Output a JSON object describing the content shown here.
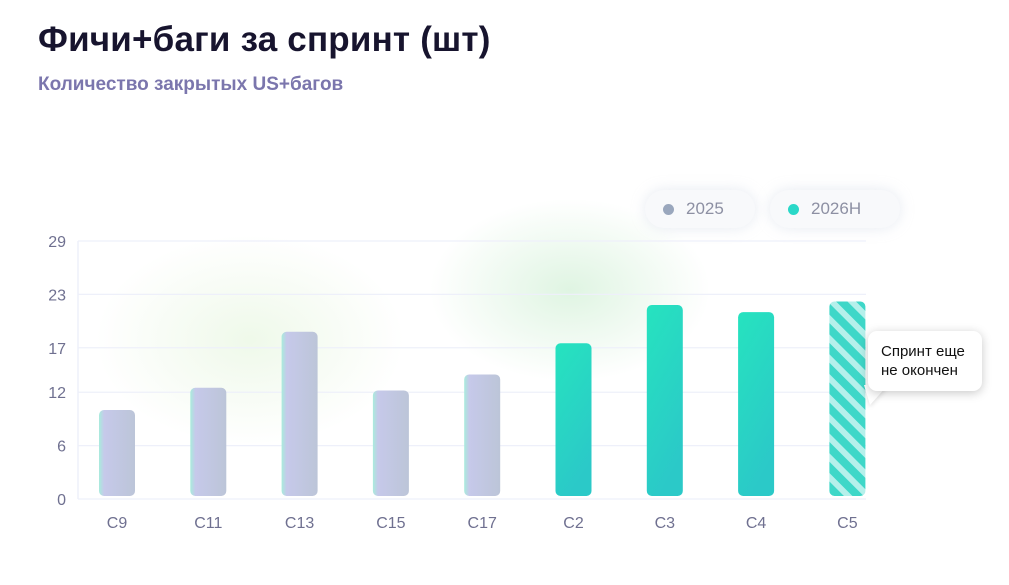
{
  "title": "Фичи+баги за спринт (шт)",
  "subtitle": "Количество закрытых US+багов",
  "legend": [
    {
      "label": "2025",
      "color": "#9aa7bd"
    },
    {
      "label": "2026H",
      "color": "#2ad8c8"
    }
  ],
  "callout": {
    "line1": "Спринт еще",
    "line2": "не окончен"
  },
  "colors": {
    "gray_bar": "#c0c6df",
    "gray_bar_edge": "#a8ecdc",
    "teal_bar_top": "#26e3bf",
    "teal_bar_bottom": "#2bc9c8",
    "hatched_bar": "#3ed7c8",
    "grid": "#eef0fa"
  },
  "chart_data": {
    "type": "bar",
    "title": "Фичи+баги за спринт (шт)",
    "subtitle": "Количество закрытых US+багов",
    "categories": [
      "С9",
      "С11",
      "С13",
      "С15",
      "С17",
      "С2",
      "С3",
      "С4",
      "С5"
    ],
    "series": [
      {
        "name": "2025",
        "values": [
          10,
          12.5,
          18.8,
          12.2,
          14,
          null,
          null,
          null,
          null
        ]
      },
      {
        "name": "2026H",
        "values": [
          null,
          null,
          null,
          null,
          null,
          17.5,
          21.8,
          21,
          22.2
        ]
      }
    ],
    "incomplete_categories": [
      "С5"
    ],
    "yticks": [
      "0",
      "6",
      "12",
      "17",
      "23",
      "29"
    ],
    "ylim": [
      0,
      29
    ],
    "grid": true,
    "legend_position": "top-right",
    "xlabel": "",
    "ylabel": ""
  }
}
